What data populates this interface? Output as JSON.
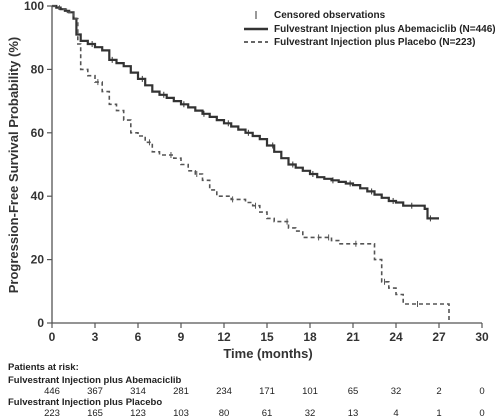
{
  "chart_data": {
    "type": "line",
    "xlabel": "Time (months)",
    "ylabel": "Progression-Free Survival Probability (%)",
    "xlim": [
      0,
      30
    ],
    "ylim": [
      0,
      100
    ],
    "xticks": [
      0,
      3,
      6,
      9,
      12,
      15,
      18,
      21,
      24,
      27,
      30
    ],
    "yticks": [
      0,
      20,
      40,
      60,
      80,
      100
    ],
    "grid": false,
    "legend_position": "top-right",
    "legend": {
      "censored_label": "Censored observations",
      "entries": [
        {
          "label": "Fulvestrant Injection plus Abemaciclib (N=446)",
          "style": "solid"
        },
        {
          "label": "Fulvestrant Injection plus Placebo (N=223)",
          "style": "dashed"
        }
      ]
    },
    "series": [
      {
        "style": "solid",
        "color": "#333333",
        "points": [
          [
            0,
            100
          ],
          [
            0.3,
            99.5
          ],
          [
            0.6,
            99
          ],
          [
            0.9,
            98.5
          ],
          [
            1.2,
            98
          ],
          [
            1.5,
            96
          ],
          [
            1.7,
            91
          ],
          [
            2,
            89
          ],
          [
            2.5,
            88
          ],
          [
            3,
            87
          ],
          [
            3.5,
            86
          ],
          [
            4,
            83
          ],
          [
            4.5,
            82
          ],
          [
            5,
            81
          ],
          [
            5.5,
            79
          ],
          [
            6,
            77
          ],
          [
            6.5,
            75
          ],
          [
            7,
            73
          ],
          [
            7.5,
            72
          ],
          [
            8,
            71
          ],
          [
            8.5,
            70
          ],
          [
            9,
            69
          ],
          [
            9.5,
            68
          ],
          [
            10,
            67
          ],
          [
            10.5,
            66
          ],
          [
            11,
            65
          ],
          [
            11.5,
            64
          ],
          [
            12,
            63
          ],
          [
            12.5,
            62
          ],
          [
            13,
            61
          ],
          [
            13.5,
            60
          ],
          [
            14,
            59
          ],
          [
            14.5,
            58
          ],
          [
            15,
            56
          ],
          [
            15.5,
            54
          ],
          [
            16,
            52
          ],
          [
            16.5,
            50
          ],
          [
            17,
            49
          ],
          [
            17.5,
            48
          ],
          [
            18,
            47
          ],
          [
            18.5,
            46
          ],
          [
            19,
            45.5
          ],
          [
            19.5,
            45
          ],
          [
            20,
            44.5
          ],
          [
            20.5,
            44
          ],
          [
            21,
            43.5
          ],
          [
            21.5,
            42.5
          ],
          [
            22,
            41.5
          ],
          [
            22.5,
            40.5
          ],
          [
            23,
            39.5
          ],
          [
            23.5,
            38.5
          ],
          [
            24,
            38
          ],
          [
            24.5,
            37
          ],
          [
            25,
            37
          ],
          [
            25.5,
            37
          ],
          [
            26,
            36
          ],
          [
            26.2,
            33
          ],
          [
            26.7,
            33
          ],
          [
            27,
            33
          ]
        ]
      },
      {
        "style": "dashed",
        "color": "#555555",
        "points": [
          [
            0,
            100
          ],
          [
            0.5,
            99
          ],
          [
            1,
            98
          ],
          [
            1.5,
            96
          ],
          [
            1.8,
            88
          ],
          [
            2,
            80
          ],
          [
            2.5,
            78
          ],
          [
            3,
            76
          ],
          [
            3.5,
            73
          ],
          [
            4,
            69
          ],
          [
            4.5,
            67
          ],
          [
            5,
            64
          ],
          [
            5.5,
            60
          ],
          [
            6,
            59
          ],
          [
            6.5,
            57
          ],
          [
            7,
            54
          ],
          [
            7.5,
            53
          ],
          [
            8,
            53
          ],
          [
            8.5,
            52
          ],
          [
            9,
            50
          ],
          [
            9.5,
            48
          ],
          [
            10,
            47
          ],
          [
            10.5,
            45
          ],
          [
            11,
            42
          ],
          [
            11.5,
            40
          ],
          [
            12,
            40
          ],
          [
            12.5,
            39
          ],
          [
            13,
            39
          ],
          [
            13.5,
            38
          ],
          [
            14,
            37
          ],
          [
            14.5,
            35
          ],
          [
            15,
            33
          ],
          [
            15.5,
            32
          ],
          [
            16,
            32
          ],
          [
            16.5,
            30
          ],
          [
            17,
            29
          ],
          [
            17.5,
            27
          ],
          [
            18,
            27
          ],
          [
            19,
            27
          ],
          [
            19.5,
            26
          ],
          [
            20,
            25
          ],
          [
            21,
            25
          ],
          [
            22,
            25
          ],
          [
            22.5,
            20
          ],
          [
            23,
            13
          ],
          [
            23.5,
            11
          ],
          [
            24,
            9
          ],
          [
            24.5,
            6
          ],
          [
            25,
            6
          ],
          [
            26,
            6
          ],
          [
            27,
            6
          ],
          [
            27.5,
            6
          ],
          [
            27.7,
            0
          ]
        ]
      }
    ],
    "censor_marks": [
      {
        "series_index": 0,
        "x": [
          2.8,
          4.2,
          6.3,
          7.8,
          9.2,
          10.6,
          12.3,
          13.7,
          15.4,
          16.8,
          18.2,
          19.6,
          20.8,
          22.3,
          23.8,
          25.1,
          26.4
        ]
      },
      {
        "series_index": 1,
        "x": [
          3.2,
          6.8,
          8.3,
          10.1,
          12.6,
          14.2,
          16.4,
          18.6,
          19.3,
          21.2,
          23.2,
          25.5
        ]
      }
    ]
  },
  "at_risk": {
    "title": "Patients at risk:",
    "times": [
      0,
      3,
      6,
      9,
      12,
      15,
      18,
      21,
      24,
      27,
      30
    ],
    "groups": [
      {
        "label": "Fulvestrant Injection plus Abemaciclib",
        "values": [
          "446",
          "367",
          "314",
          "281",
          "234",
          "171",
          "101",
          "65",
          "32",
          "2",
          "0"
        ]
      },
      {
        "label": "Fulvestrant Injection plus Placebo",
        "values": [
          "223",
          "165",
          "123",
          "103",
          "80",
          "61",
          "32",
          "13",
          "4",
          "1",
          "0"
        ]
      }
    ]
  }
}
